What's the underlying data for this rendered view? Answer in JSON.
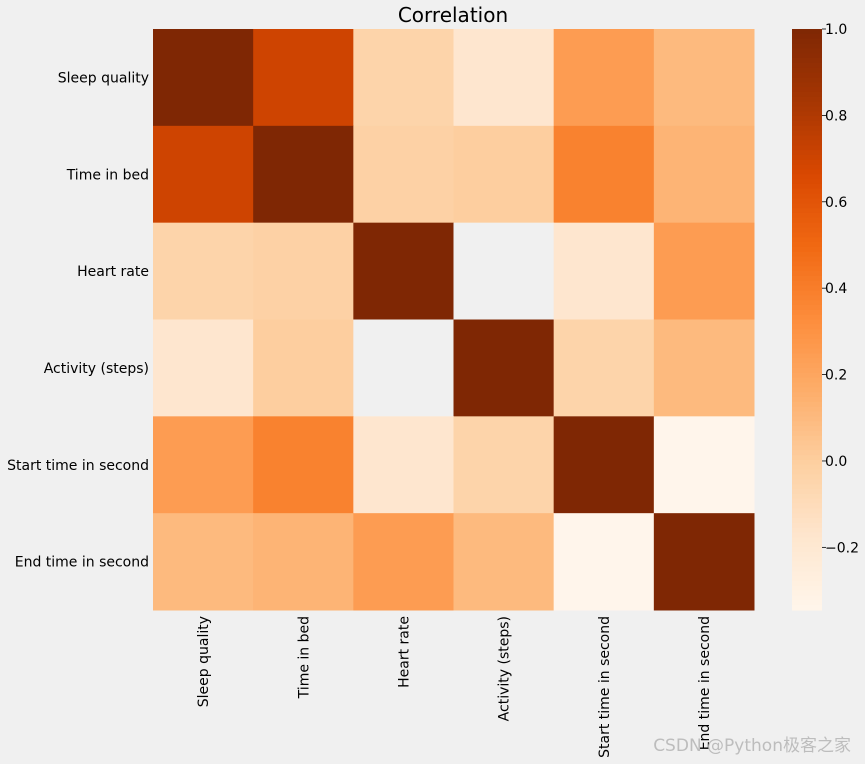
{
  "chart_data": {
    "type": "heatmap",
    "title": "Correlation",
    "labels": [
      "Sleep quality",
      "Time in bed",
      "Heart rate",
      "Activity (steps)",
      "Start time in second",
      "End time in second"
    ],
    "matrix": [
      [
        1.0,
        0.7,
        -0.04,
        -0.18,
        0.25,
        0.1
      ],
      [
        0.7,
        1.0,
        -0.02,
        0.0,
        0.38,
        0.13
      ],
      [
        -0.04,
        -0.02,
        1.0,
        null,
        -0.18,
        0.25
      ],
      [
        -0.18,
        0.0,
        null,
        1.0,
        -0.04,
        0.1
      ],
      [
        0.25,
        0.38,
        -0.18,
        -0.04,
        1.0,
        -0.345
      ],
      [
        0.1,
        0.13,
        0.25,
        0.1,
        -0.345,
        1.0
      ]
    ],
    "colormap": "Oranges",
    "vmin": -0.345,
    "vmax": 1.0,
    "colorbar_ticks": [
      1.0,
      0.8,
      0.6,
      0.4,
      0.2,
      0.0,
      -0.2
    ],
    "colorbar_tick_labels": [
      "1.0",
      "0.8",
      "0.6",
      "0.4",
      "0.2",
      "0.0",
      "−0.2"
    ],
    "missing_color": "#f0f0f0"
  },
  "watermark": "CSDN @Python极客之家"
}
